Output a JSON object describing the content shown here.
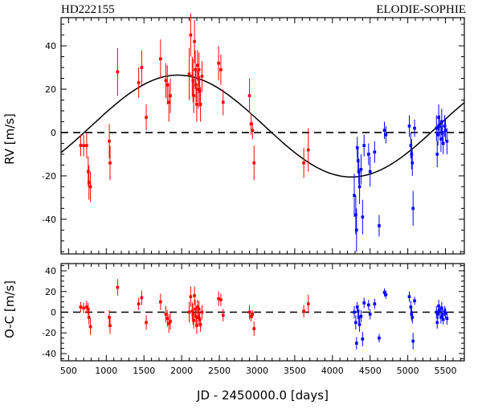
{
  "chart_data": [
    {
      "type": "scatter",
      "panel": "top",
      "title_left": "HD222155",
      "title_right": "ELODIE-SOPHIE",
      "xlabel": "JD - 2450000.0 [days]",
      "ylabel": "RV [m/s]",
      "xlim": [
        400,
        5750
      ],
      "ylim": [
        -56,
        53
      ],
      "yticks": [
        -40,
        -20,
        0,
        20,
        40
      ],
      "xticks": [
        500,
        1000,
        1500,
        2000,
        2500,
        3000,
        3500,
        4000,
        4500,
        5000,
        5500
      ],
      "reference_line": 0,
      "model": {
        "name": "Keplerian fit",
        "amplitude": 23.5,
        "offset": 3,
        "period": 4600,
        "peak_jd": 1950,
        "color": "#000000"
      },
      "series": [
        {
          "name": "ELODIE",
          "color": "#ff0000",
          "points": [
            [
              660,
              -6,
              5
            ],
            [
              700,
              -6,
              5
            ],
            [
              740,
              -6,
              6
            ],
            [
              760,
              -18,
              7
            ],
            [
              770,
              -23,
              8
            ],
            [
              790,
              -25,
              7
            ],
            [
              1040,
              -4,
              8
            ],
            [
              1050,
              -14,
              8
            ],
            [
              1150,
              28,
              11
            ],
            [
              1430,
              23,
              7
            ],
            [
              1470,
              30,
              8
            ],
            [
              1530,
              7,
              6
            ],
            [
              1720,
              34,
              9
            ],
            [
              1790,
              24,
              8
            ],
            [
              1810,
              22,
              9
            ],
            [
              1830,
              14,
              9
            ],
            [
              1850,
              17,
              8
            ],
            [
              2100,
              27,
              12
            ],
            [
              2120,
              45,
              10
            ],
            [
              2140,
              26,
              9
            ],
            [
              2150,
              24,
              10
            ],
            [
              2160,
              17,
              8
            ],
            [
              2170,
              42,
              10
            ],
            [
              2180,
              29,
              9
            ],
            [
              2190,
              22,
              8
            ],
            [
              2200,
              13,
              8
            ],
            [
              2210,
              31,
              7
            ],
            [
              2220,
              20,
              9
            ],
            [
              2230,
              29,
              8
            ],
            [
              2240,
              19,
              7
            ],
            [
              2250,
              13,
              8
            ],
            [
              2270,
              26,
              7
            ],
            [
              2490,
              32,
              8
            ],
            [
              2520,
              29,
              7
            ],
            [
              2550,
              14,
              6
            ],
            [
              2900,
              17,
              8
            ],
            [
              2920,
              4,
              5
            ],
            [
              2940,
              1,
              4
            ],
            [
              2960,
              -14,
              8
            ],
            [
              3620,
              -14,
              7
            ],
            [
              3680,
              -8,
              10
            ]
          ]
        },
        {
          "name": "SOPHIE",
          "color": "#0000ff",
          "points": [
            [
              4290,
              -29,
              10
            ],
            [
              4310,
              -38,
              9
            ],
            [
              4320,
              -45,
              10
            ],
            [
              4330,
              -7,
              5
            ],
            [
              4340,
              -13,
              6
            ],
            [
              4350,
              -18,
              6
            ],
            [
              4360,
              -25,
              8
            ],
            [
              4380,
              -17,
              7
            ],
            [
              4400,
              -39,
              8
            ],
            [
              4420,
              -6,
              5
            ],
            [
              4480,
              -10,
              5
            ],
            [
              4500,
              -18,
              7
            ],
            [
              4560,
              -9,
              5
            ],
            [
              4620,
              -43,
              5
            ],
            [
              4690,
              1,
              4
            ],
            [
              4710,
              -1,
              4
            ],
            [
              5020,
              3,
              5
            ],
            [
              5040,
              -6,
              6
            ],
            [
              5050,
              -10,
              7
            ],
            [
              5060,
              -14,
              6
            ],
            [
              5070,
              -35,
              8
            ],
            [
              5090,
              2,
              4
            ],
            [
              5380,
              2,
              6
            ],
            [
              5390,
              -10,
              6
            ],
            [
              5400,
              -1,
              5
            ],
            [
              5410,
              7,
              6
            ],
            [
              5420,
              3,
              5
            ],
            [
              5440,
              -3,
              6
            ],
            [
              5450,
              5,
              6
            ],
            [
              5460,
              0,
              5
            ],
            [
              5470,
              -5,
              5
            ],
            [
              5490,
              3,
              5
            ],
            [
              5500,
              1,
              5
            ],
            [
              5520,
              -4,
              6
            ]
          ]
        }
      ]
    },
    {
      "type": "scatter",
      "panel": "residuals",
      "xlabel": "JD - 2450000.0 [days]",
      "ylabel": "O-C [m/s]",
      "xlim": [
        400,
        5750
      ],
      "ylim": [
        -47,
        47
      ],
      "yticks": [
        -40,
        -20,
        0,
        20,
        40
      ],
      "xticks": [
        500,
        1000,
        1500,
        2000,
        2500,
        3000,
        3500,
        4000,
        4500,
        5000,
        5500
      ],
      "reference_line": 0,
      "series": [
        {
          "name": "ELODIE",
          "color": "#ff0000",
          "points": [
            [
              660,
              5,
              5
            ],
            [
              700,
              4,
              5
            ],
            [
              740,
              5,
              6
            ],
            [
              760,
              3,
              6
            ],
            [
              770,
              -5,
              7
            ],
            [
              790,
              -14,
              8
            ],
            [
              1040,
              -5,
              7
            ],
            [
              1050,
              -13,
              8
            ],
            [
              1150,
              24,
              8
            ],
            [
              1430,
              8,
              6
            ],
            [
              1470,
              14,
              7
            ],
            [
              1530,
              -10,
              7
            ],
            [
              1720,
              10,
              8
            ],
            [
              1790,
              -2,
              8
            ],
            [
              1810,
              -6,
              8
            ],
            [
              1830,
              -11,
              9
            ],
            [
              1850,
              -9,
              8
            ],
            [
              2100,
              0,
              10
            ],
            [
              2120,
              15,
              10
            ],
            [
              2140,
              1,
              9
            ],
            [
              2150,
              -2,
              10
            ],
            [
              2160,
              -8,
              8
            ],
            [
              2170,
              16,
              9
            ],
            [
              2180,
              3,
              9
            ],
            [
              2190,
              -4,
              8
            ],
            [
              2200,
              -13,
              8
            ],
            [
              2210,
              5,
              7
            ],
            [
              2220,
              -5,
              8
            ],
            [
              2230,
              3,
              8
            ],
            [
              2240,
              -7,
              7
            ],
            [
              2250,
              -12,
              7
            ],
            [
              2270,
              0,
              7
            ],
            [
              2490,
              13,
              7
            ],
            [
              2520,
              12,
              6
            ],
            [
              2550,
              -3,
              6
            ],
            [
              2900,
              0,
              7
            ],
            [
              2920,
              -4,
              5
            ],
            [
              2940,
              -2,
              4
            ],
            [
              2960,
              -16,
              7
            ],
            [
              3620,
              1,
              6
            ],
            [
              3680,
              8,
              9
            ]
          ]
        },
        {
          "name": "SOPHIE",
          "color": "#0000ff",
          "points": [
            [
              4290,
              0,
              6
            ],
            [
              4310,
              -10,
              7
            ],
            [
              4320,
              -30,
              6
            ],
            [
              4330,
              5,
              5
            ],
            [
              4340,
              1,
              5
            ],
            [
              4350,
              -5,
              6
            ],
            [
              4360,
              -12,
              7
            ],
            [
              4380,
              -4,
              6
            ],
            [
              4400,
              -26,
              7
            ],
            [
              4420,
              9,
              5
            ],
            [
              4480,
              7,
              5
            ],
            [
              4500,
              -2,
              5
            ],
            [
              4560,
              8,
              5
            ],
            [
              4620,
              -25,
              4
            ],
            [
              4690,
              19,
              4
            ],
            [
              4710,
              17,
              4
            ],
            [
              5020,
              15,
              5
            ],
            [
              5040,
              5,
              6
            ],
            [
              5050,
              -2,
              6
            ],
            [
              5060,
              -5,
              6
            ],
            [
              5070,
              -28,
              8
            ],
            [
              5090,
              11,
              4
            ],
            [
              5380,
              0,
              6
            ],
            [
              5390,
              -10,
              6
            ],
            [
              5400,
              -2,
              5
            ],
            [
              5410,
              6,
              6
            ],
            [
              5420,
              2,
              5
            ],
            [
              5440,
              -5,
              6
            ],
            [
              5450,
              4,
              6
            ],
            [
              5460,
              -2,
              5
            ],
            [
              5470,
              -7,
              5
            ],
            [
              5490,
              1,
              5
            ],
            [
              5500,
              -1,
              5
            ],
            [
              5520,
              -6,
              6
            ]
          ]
        }
      ]
    }
  ]
}
